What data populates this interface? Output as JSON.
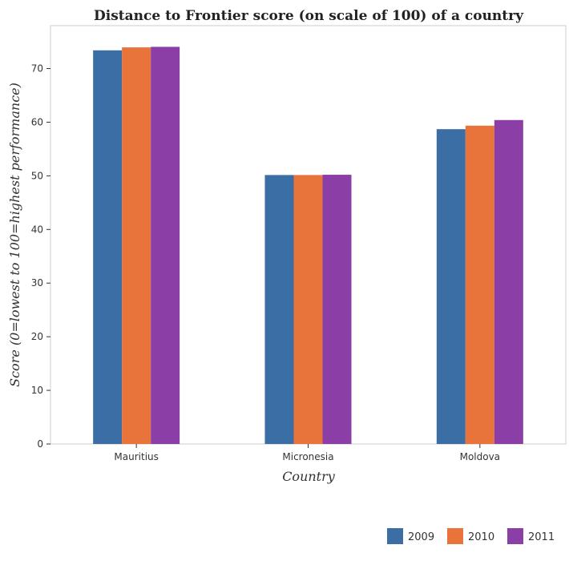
{
  "chart_data": {
    "type": "bar",
    "title": "Distance to Frontier score (on scale of 100) of a country",
    "xlabel": "Country",
    "ylabel": "Score (0=lowest to 100=highest performance)",
    "categories": [
      "Mauritius",
      "Micronesia",
      "Moldova"
    ],
    "series": [
      {
        "name": "2009",
        "color": "#3a6ea5",
        "values": [
          73.4,
          50.15,
          58.7
        ]
      },
      {
        "name": "2010",
        "color": "#e8743b",
        "values": [
          73.95,
          50.15,
          59.35
        ]
      },
      {
        "name": "2011",
        "color": "#8b3fa6",
        "values": [
          74.05,
          50.2,
          60.4
        ]
      }
    ],
    "ylim": [
      0,
      78
    ],
    "yticks": [
      0,
      10,
      20,
      30,
      40,
      50,
      60,
      70
    ],
    "grid": false,
    "legend_position": "bottom-right"
  }
}
